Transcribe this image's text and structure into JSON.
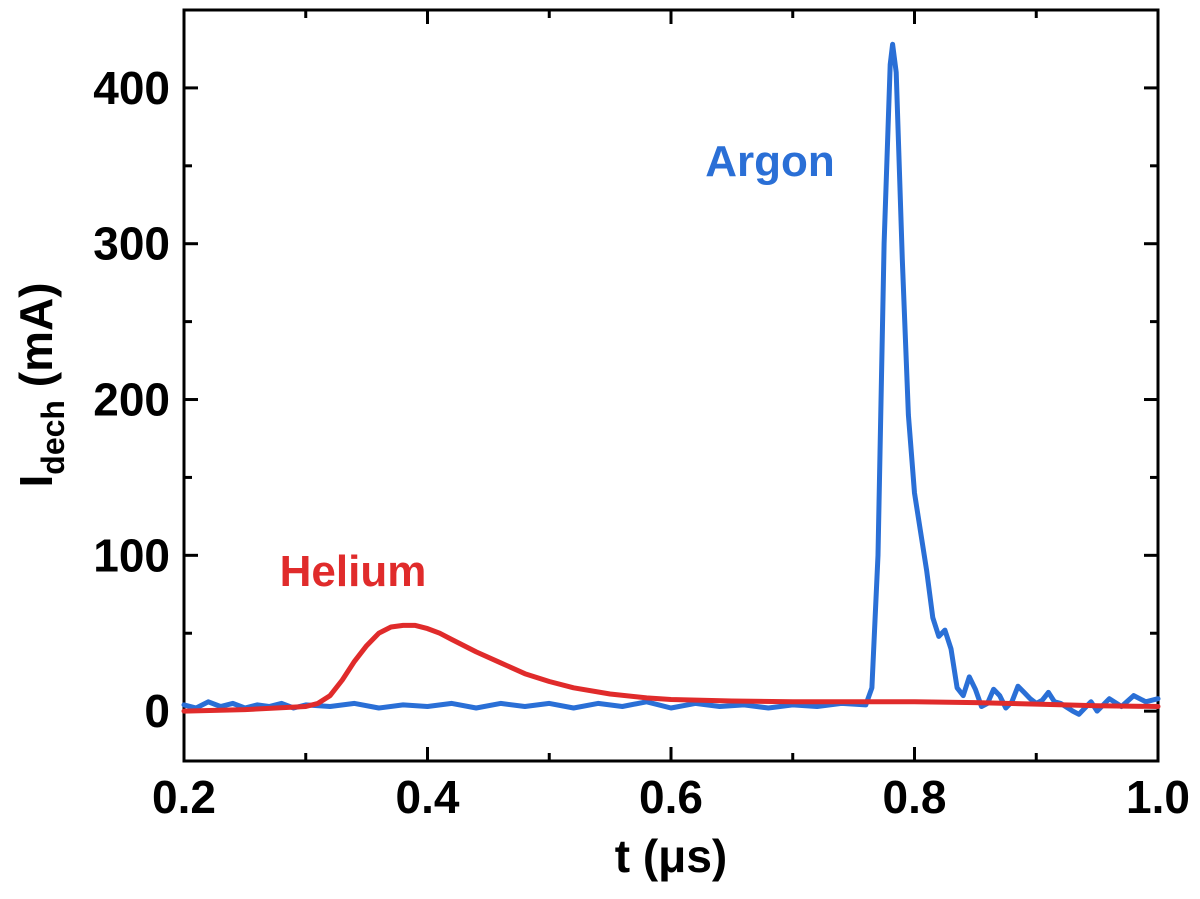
{
  "chart_data": {
    "type": "line",
    "xlabel": "t (μs)",
    "ylabel": {
      "main": "I",
      "subscript": "dech",
      "unit": " (mA)"
    },
    "xlim": [
      0.2,
      1.0
    ],
    "ylim": [
      -32,
      450
    ],
    "x_ticks": [
      0.2,
      0.4,
      0.6,
      0.8,
      1.0
    ],
    "x_tick_labels": [
      "0.2",
      "0.4",
      "0.6",
      "0.8",
      "1.0"
    ],
    "y_ticks": [
      0,
      100,
      200,
      300,
      400
    ],
    "y_tick_labels": [
      "0",
      "100",
      "200",
      "300",
      "400"
    ],
    "grid": false,
    "annotations": [
      {
        "text": "Argon",
        "color": "#2a6fd6"
      },
      {
        "text": "Helium",
        "color": "#e02b2b"
      }
    ],
    "series": [
      {
        "name": "Helium",
        "color": "#e02b2b",
        "x": [
          0.2,
          0.25,
          0.3,
          0.31,
          0.32,
          0.33,
          0.34,
          0.35,
          0.36,
          0.37,
          0.38,
          0.39,
          0.4,
          0.41,
          0.42,
          0.44,
          0.46,
          0.48,
          0.5,
          0.52,
          0.55,
          0.58,
          0.6,
          0.65,
          0.7,
          0.75,
          0.8,
          0.85,
          0.9,
          0.95,
          1.0
        ],
        "y": [
          0,
          1,
          3,
          5,
          10,
          20,
          32,
          42,
          50,
          54,
          55,
          55,
          53,
          50,
          46,
          38,
          31,
          24,
          19,
          15,
          11,
          8.5,
          7.5,
          6.5,
          6,
          6,
          6,
          5.5,
          4.5,
          3.5,
          3
        ]
      },
      {
        "name": "Argon",
        "color": "#2a6fd6",
        "x": [
          0.2,
          0.21,
          0.22,
          0.23,
          0.24,
          0.25,
          0.26,
          0.27,
          0.28,
          0.29,
          0.3,
          0.32,
          0.34,
          0.36,
          0.38,
          0.4,
          0.42,
          0.44,
          0.46,
          0.48,
          0.5,
          0.52,
          0.54,
          0.56,
          0.58,
          0.6,
          0.62,
          0.64,
          0.66,
          0.68,
          0.7,
          0.72,
          0.74,
          0.76,
          0.765,
          0.77,
          0.775,
          0.78,
          0.782,
          0.785,
          0.79,
          0.795,
          0.8,
          0.805,
          0.81,
          0.815,
          0.82,
          0.825,
          0.83,
          0.835,
          0.84,
          0.845,
          0.85,
          0.855,
          0.86,
          0.865,
          0.87,
          0.875,
          0.88,
          0.885,
          0.89,
          0.895,
          0.9,
          0.905,
          0.91,
          0.915,
          0.92,
          0.93,
          0.935,
          0.94,
          0.945,
          0.95,
          0.96,
          0.97,
          0.98,
          0.99,
          1.0
        ],
        "y": [
          4,
          2,
          6,
          3,
          5,
          2,
          4,
          3,
          5,
          2,
          4,
          3,
          5,
          2,
          4,
          3,
          5,
          2,
          5,
          3,
          5,
          2,
          5,
          3,
          6,
          2,
          5,
          3,
          4,
          2,
          4,
          3,
          5,
          4,
          15,
          100,
          300,
          415,
          428,
          410,
          290,
          190,
          140,
          115,
          90,
          60,
          48,
          52,
          40,
          15,
          10,
          22,
          14,
          3,
          5,
          14,
          10,
          2,
          6,
          16,
          12,
          8,
          5,
          7,
          12,
          6,
          5,
          0,
          -2,
          2,
          6,
          0,
          8,
          3,
          10,
          6,
          8
        ]
      }
    ]
  }
}
